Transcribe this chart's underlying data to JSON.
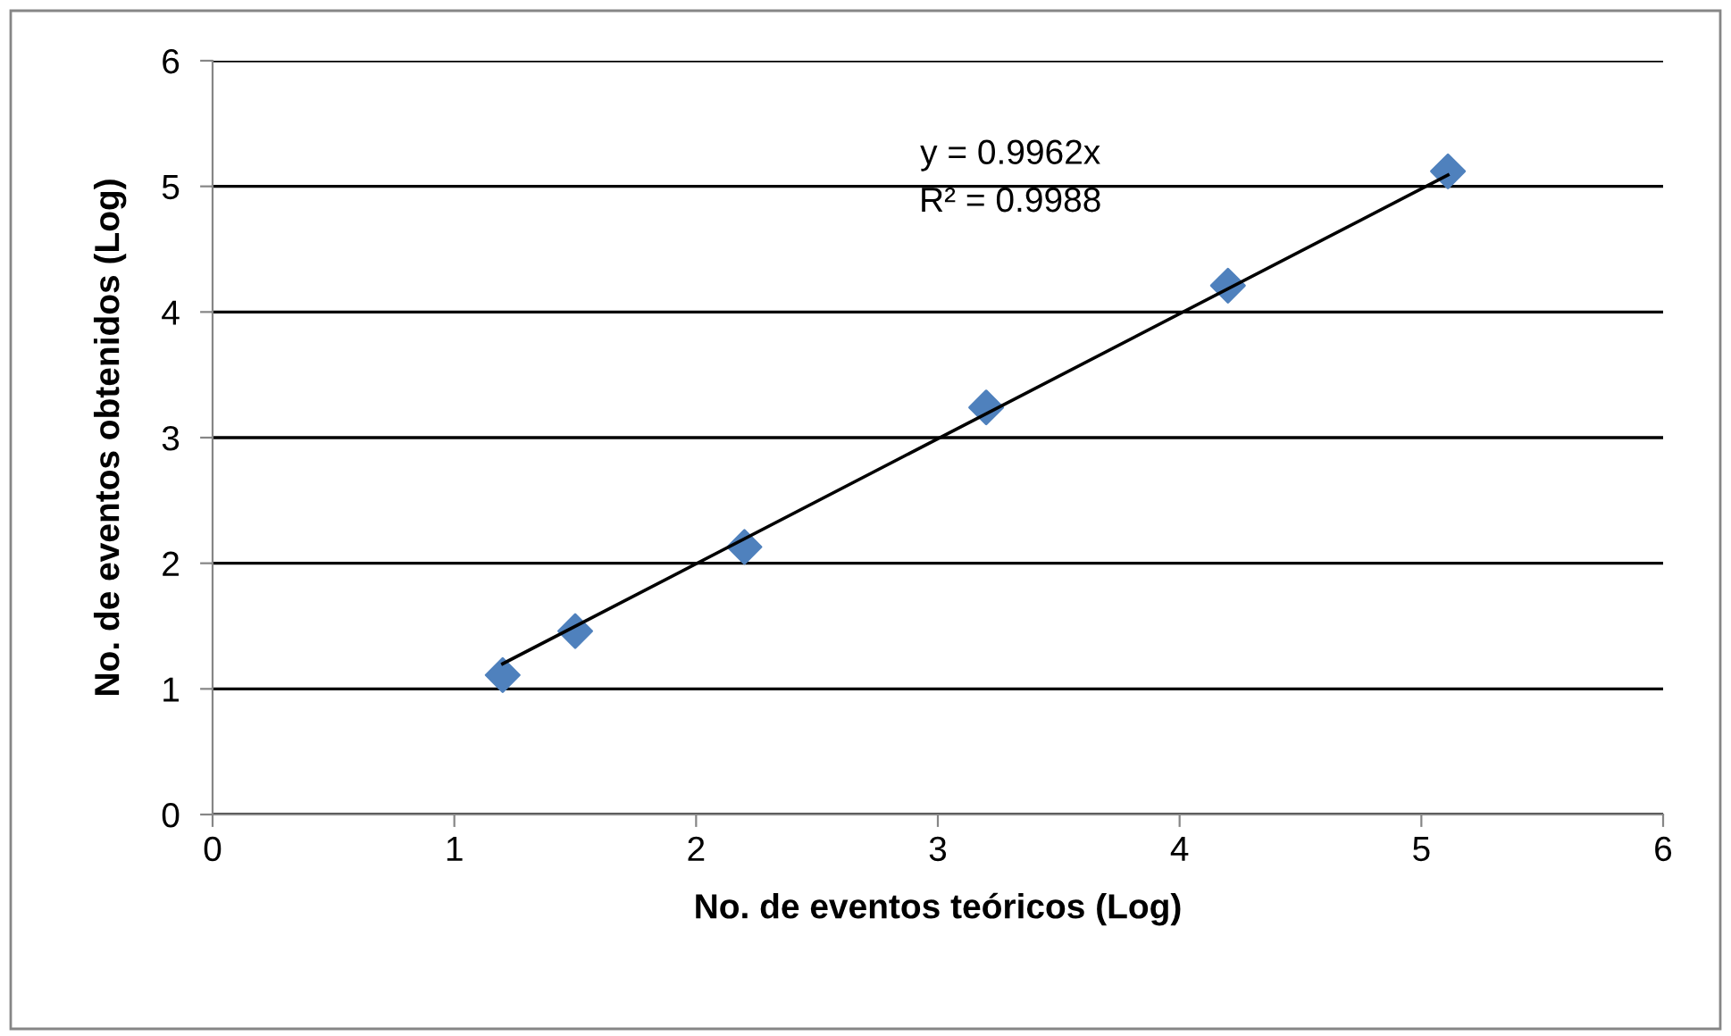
{
  "chart_data": {
    "type": "scatter",
    "xlabel": "No. de eventos teóricos (Log)",
    "ylabel": "No. de eventos obtenidos (Log)",
    "series": [
      {
        "color": "#4f81bd",
        "marker": "diamond",
        "x": [
          1.2,
          1.5,
          2.2,
          3.2,
          4.2,
          5.11
        ],
        "values": [
          1.11,
          1.46,
          2.13,
          3.24,
          4.21,
          5.12
        ]
      },
      {
        "type": "line",
        "color": "#000000",
        "marker": "none",
        "line_style": "solid",
        "x": [
          1.2,
          5.11
        ],
        "values": [
          1.2,
          5.09
        ]
      }
    ],
    "annotations": [
      "y = 0.9962x",
      "R² = 0.9988"
    ],
    "xlim": [
      0,
      6
    ],
    "xticks": [
      0,
      1,
      2,
      3,
      4,
      5,
      6
    ],
    "ylim": [
      0,
      6
    ],
    "yticks": [
      0,
      1,
      2,
      3,
      4,
      5,
      6
    ],
    "grid": "y",
    "legend": false
  }
}
